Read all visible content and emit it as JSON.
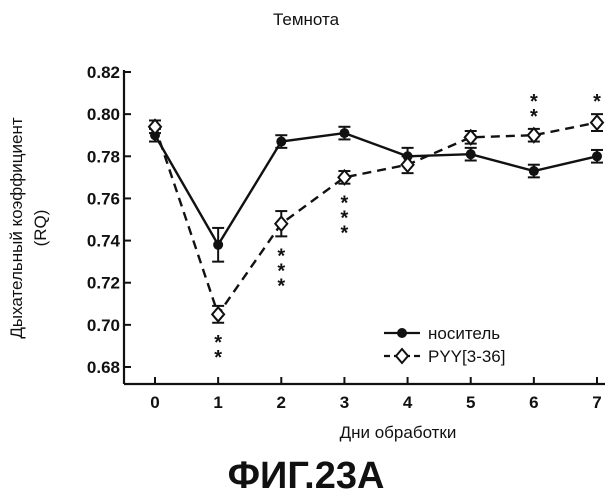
{
  "figure_caption": "ФИГ.23А",
  "chart_data": {
    "type": "line",
    "title": "Темнота",
    "xlabel": "Дни обработки",
    "ylabel_line1": "Дыхательный коэффициент",
    "ylabel_line2": "(RQ)",
    "x": [
      0,
      1,
      2,
      3,
      4,
      5,
      6,
      7
    ],
    "xticks": [
      "0",
      "1",
      "2",
      "3",
      "4",
      "5",
      "6",
      "7"
    ],
    "ylim": [
      0.68,
      0.82
    ],
    "yticks": [
      "0.68",
      "0.70",
      "0.72",
      "0.74",
      "0.76",
      "0.78",
      "0.80",
      "0.82"
    ],
    "legend_position": "bottom-right",
    "series": [
      {
        "name": "носитель",
        "marker": "filled-circle",
        "line": "solid",
        "values": [
          0.79,
          0.738,
          0.787,
          0.791,
          0.78,
          0.781,
          0.773,
          0.78
        ],
        "errors": [
          0.003,
          0.008,
          0.003,
          0.003,
          0.004,
          0.003,
          0.003,
          0.003
        ]
      },
      {
        "name": "PYY[3-36]",
        "marker": "open-diamond",
        "line": "dashed",
        "values": [
          0.794,
          0.705,
          0.748,
          0.77,
          0.776,
          0.789,
          0.79,
          0.796
        ],
        "errors": [
          0.003,
          0.004,
          0.006,
          0.003,
          0.004,
          0.003,
          0.003,
          0.004
        ]
      }
    ],
    "significance": [
      {
        "x": 1,
        "stars": "**",
        "position": "below"
      },
      {
        "x": 2,
        "stars": "***",
        "position": "below"
      },
      {
        "x": 3,
        "stars": "***",
        "position": "below"
      },
      {
        "x": 6,
        "stars": "**",
        "position": "above"
      },
      {
        "x": 7,
        "stars": "*",
        "position": "above"
      }
    ]
  }
}
